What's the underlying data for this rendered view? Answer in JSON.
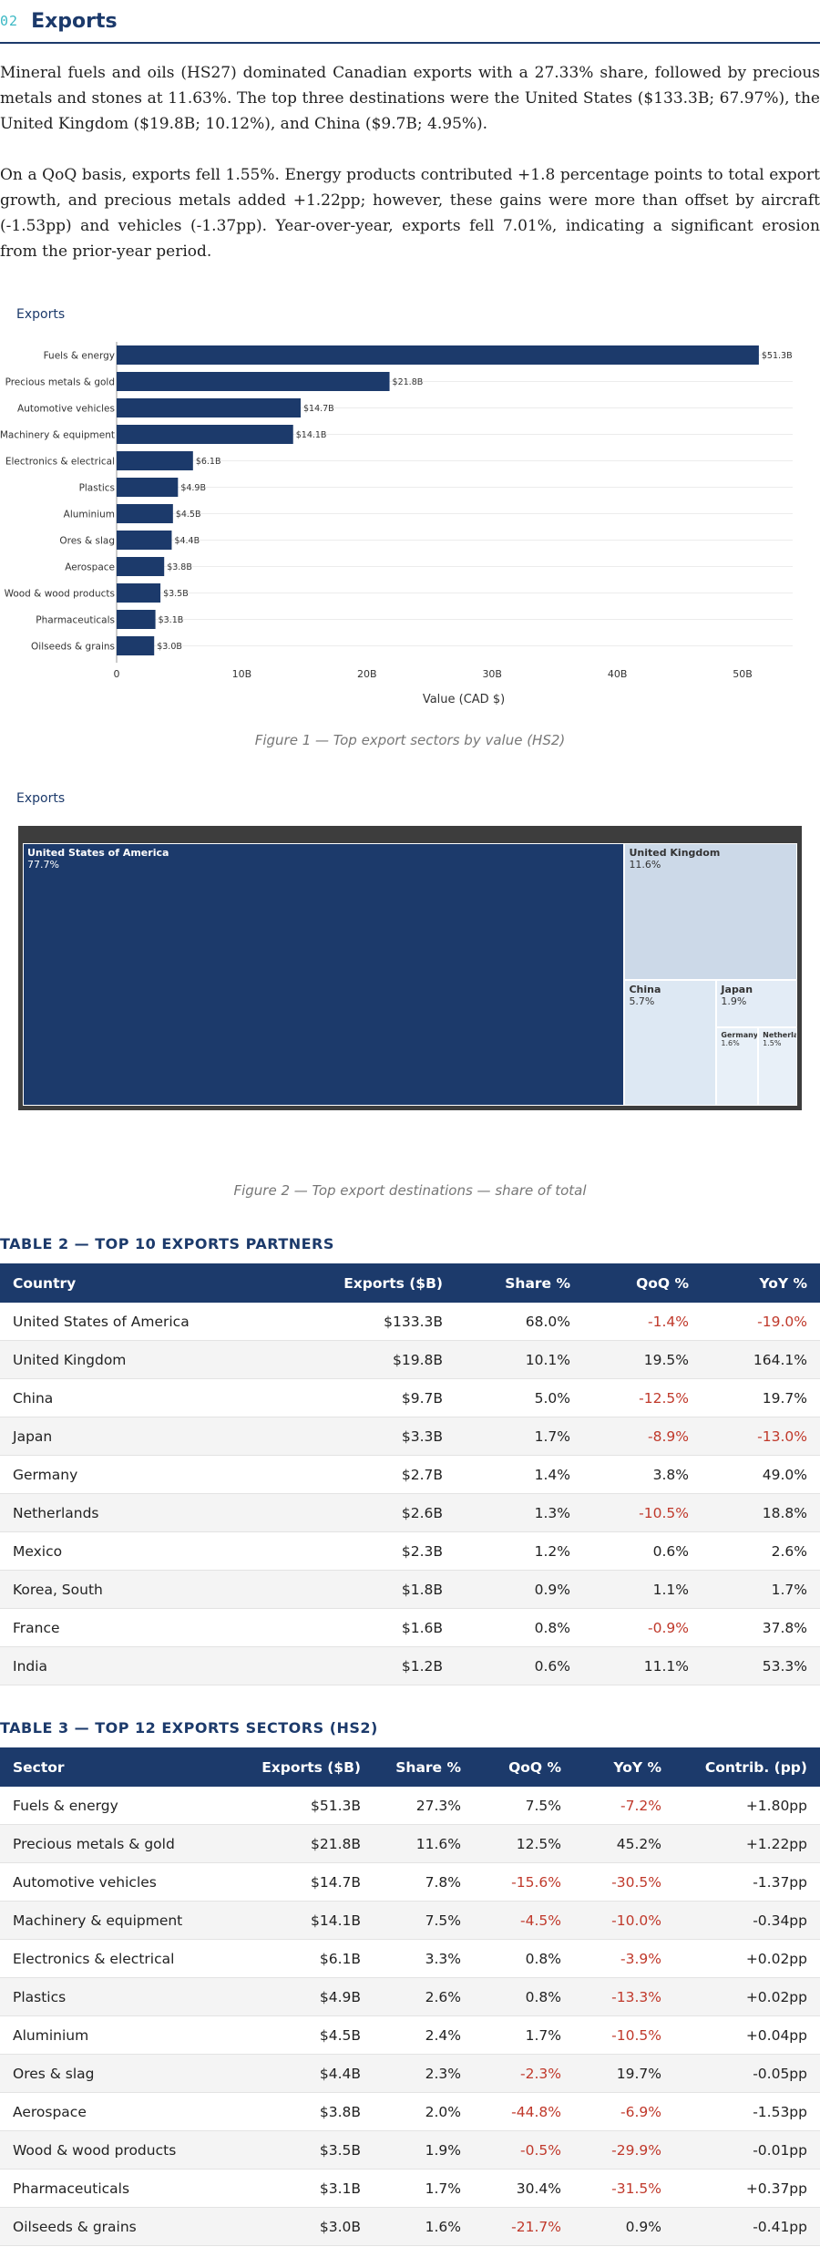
{
  "section": {
    "number": "02",
    "title": "Exports"
  },
  "paragraphs": [
    "Mineral fuels and oils (HS27) dominated Canadian exports with a 27.33% share, followed by precious metals and stones at 11.63%. The top three destinations were the United States ($133.3B; 67.97%), the United Kingdom ($19.8B; 10.12%), and China ($9.7B; 4.95%).",
    "On a QoQ basis, exports fell 1.55%. Energy products contributed +1.8 percentage points to total export growth, and precious metals added +1.22pp; however, these gains were more than offset by aircraft (-1.53pp) and vehicles (-1.37pp). Year-over-year, exports fell 7.01%, indicating a significant erosion from the prior-year period."
  ],
  "chart_data": [
    {
      "type": "bar",
      "orientation": "horizontal",
      "title": "Exports",
      "xlabel": "Value (CAD $)",
      "ylabel": "",
      "xlim": [
        0,
        54
      ],
      "x_ticks": [
        {
          "value": 0,
          "label": "0"
        },
        {
          "value": 10,
          "label": "10B"
        },
        {
          "value": 20,
          "label": "20B"
        },
        {
          "value": 30,
          "label": "30B"
        },
        {
          "value": 40,
          "label": "40B"
        },
        {
          "value": 50,
          "label": "50B"
        }
      ],
      "categories": [
        "Fuels & energy",
        "Precious metals & gold",
        "Automotive vehicles",
        "Machinery & equipment",
        "Electronics & electrical",
        "Plastics",
        "Aluminium",
        "Ores & slag",
        "Aerospace",
        "Wood & wood products",
        "Pharmaceuticals",
        "Oilseeds & grains"
      ],
      "values": [
        51.3,
        21.8,
        14.7,
        14.1,
        6.1,
        4.9,
        4.5,
        4.4,
        3.8,
        3.5,
        3.1,
        3.0
      ],
      "value_labels": [
        "$51.3B",
        "$21.8B",
        "$14.7B",
        "$14.1B",
        "$6.1B",
        "$4.9B",
        "$4.5B",
        "$4.4B",
        "$3.8B",
        "$3.5B",
        "$3.1B",
        "$3.0B"
      ],
      "grid": true,
      "bar_color": "#1c3a6b"
    },
    {
      "type": "treemap",
      "title": "Exports",
      "items": [
        {
          "name": "United States of America",
          "value": 77.7,
          "label": "77.7%",
          "color": "#1c3a6b",
          "text_color": "#ffffff"
        },
        {
          "name": "United Kingdom",
          "value": 11.6,
          "label": "11.6%",
          "color": "#ccd9e8",
          "text_color": "#333333"
        },
        {
          "name": "China",
          "value": 5.7,
          "label": "5.7%",
          "color": "#dde8f3",
          "text_color": "#333333"
        },
        {
          "name": "Japan",
          "value": 1.9,
          "label": "1.9%",
          "color": "#e3ecf6",
          "text_color": "#333333"
        },
        {
          "name": "Germany",
          "value": 1.6,
          "label": "1.6%",
          "color": "#e8f0f8",
          "text_color": "#333333"
        },
        {
          "name": "Netherlands",
          "value": 1.5,
          "label": "1.5%",
          "color": "#e8f0f8",
          "text_color": "#333333"
        }
      ]
    }
  ],
  "figures": {
    "fig1_caption": "Figure 1 — Top export sectors by value (HS2)",
    "fig2_caption": "Figure 2 — Top export destinations — share of total"
  },
  "table2": {
    "title": "TABLE 2 — TOP 10 EXPORTS PARTNERS",
    "columns": [
      "Country",
      "Exports ($B)",
      "Share %",
      "QoQ %",
      "YoY %"
    ],
    "rows": [
      [
        "United States of America",
        "$133.3B",
        "68.0%",
        "-1.4%",
        "-19.0%"
      ],
      [
        "United Kingdom",
        "$19.8B",
        "10.1%",
        "19.5%",
        "164.1%"
      ],
      [
        "China",
        "$9.7B",
        "5.0%",
        "-12.5%",
        "19.7%"
      ],
      [
        "Japan",
        "$3.3B",
        "1.7%",
        "-8.9%",
        "-13.0%"
      ],
      [
        "Germany",
        "$2.7B",
        "1.4%",
        "3.8%",
        "49.0%"
      ],
      [
        "Netherlands",
        "$2.6B",
        "1.3%",
        "-10.5%",
        "18.8%"
      ],
      [
        "Mexico",
        "$2.3B",
        "1.2%",
        "0.6%",
        "2.6%"
      ],
      [
        "Korea, South",
        "$1.8B",
        "0.9%",
        "1.1%",
        "1.7%"
      ],
      [
        "France",
        "$1.6B",
        "0.8%",
        "-0.9%",
        "37.8%"
      ],
      [
        "India",
        "$1.2B",
        "0.6%",
        "11.1%",
        "53.3%"
      ]
    ]
  },
  "table3": {
    "title": "TABLE 3 — TOP 12 EXPORTS SECTORS (HS2)",
    "columns": [
      "Sector",
      "Exports ($B)",
      "Share %",
      "QoQ %",
      "YoY %",
      "Contrib. (pp)"
    ],
    "rows": [
      [
        "Fuels & energy",
        "$51.3B",
        "27.3%",
        "7.5%",
        "-7.2%",
        "+1.80pp"
      ],
      [
        "Precious metals & gold",
        "$21.8B",
        "11.6%",
        "12.5%",
        "45.2%",
        "+1.22pp"
      ],
      [
        "Automotive vehicles",
        "$14.7B",
        "7.8%",
        "-15.6%",
        "-30.5%",
        "-1.37pp"
      ],
      [
        "Machinery & equipment",
        "$14.1B",
        "7.5%",
        "-4.5%",
        "-10.0%",
        "-0.34pp"
      ],
      [
        "Electronics & electrical",
        "$6.1B",
        "3.3%",
        "0.8%",
        "-3.9%",
        "+0.02pp"
      ],
      [
        "Plastics",
        "$4.9B",
        "2.6%",
        "0.8%",
        "-13.3%",
        "+0.02pp"
      ],
      [
        "Aluminium",
        "$4.5B",
        "2.4%",
        "1.7%",
        "-10.5%",
        "+0.04pp"
      ],
      [
        "Ores & slag",
        "$4.4B",
        "2.3%",
        "-2.3%",
        "19.7%",
        "-0.05pp"
      ],
      [
        "Aerospace",
        "$3.8B",
        "2.0%",
        "-44.8%",
        "-6.9%",
        "-1.53pp"
      ],
      [
        "Wood & wood products",
        "$3.5B",
        "1.9%",
        "-0.5%",
        "-29.9%",
        "-0.01pp"
      ],
      [
        "Pharmaceuticals",
        "$3.1B",
        "1.7%",
        "30.4%",
        "-31.5%",
        "+0.37pp"
      ],
      [
        "Oilseeds & grains",
        "$3.0B",
        "1.6%",
        "-21.7%",
        "0.9%",
        "-0.41pp"
      ]
    ]
  }
}
